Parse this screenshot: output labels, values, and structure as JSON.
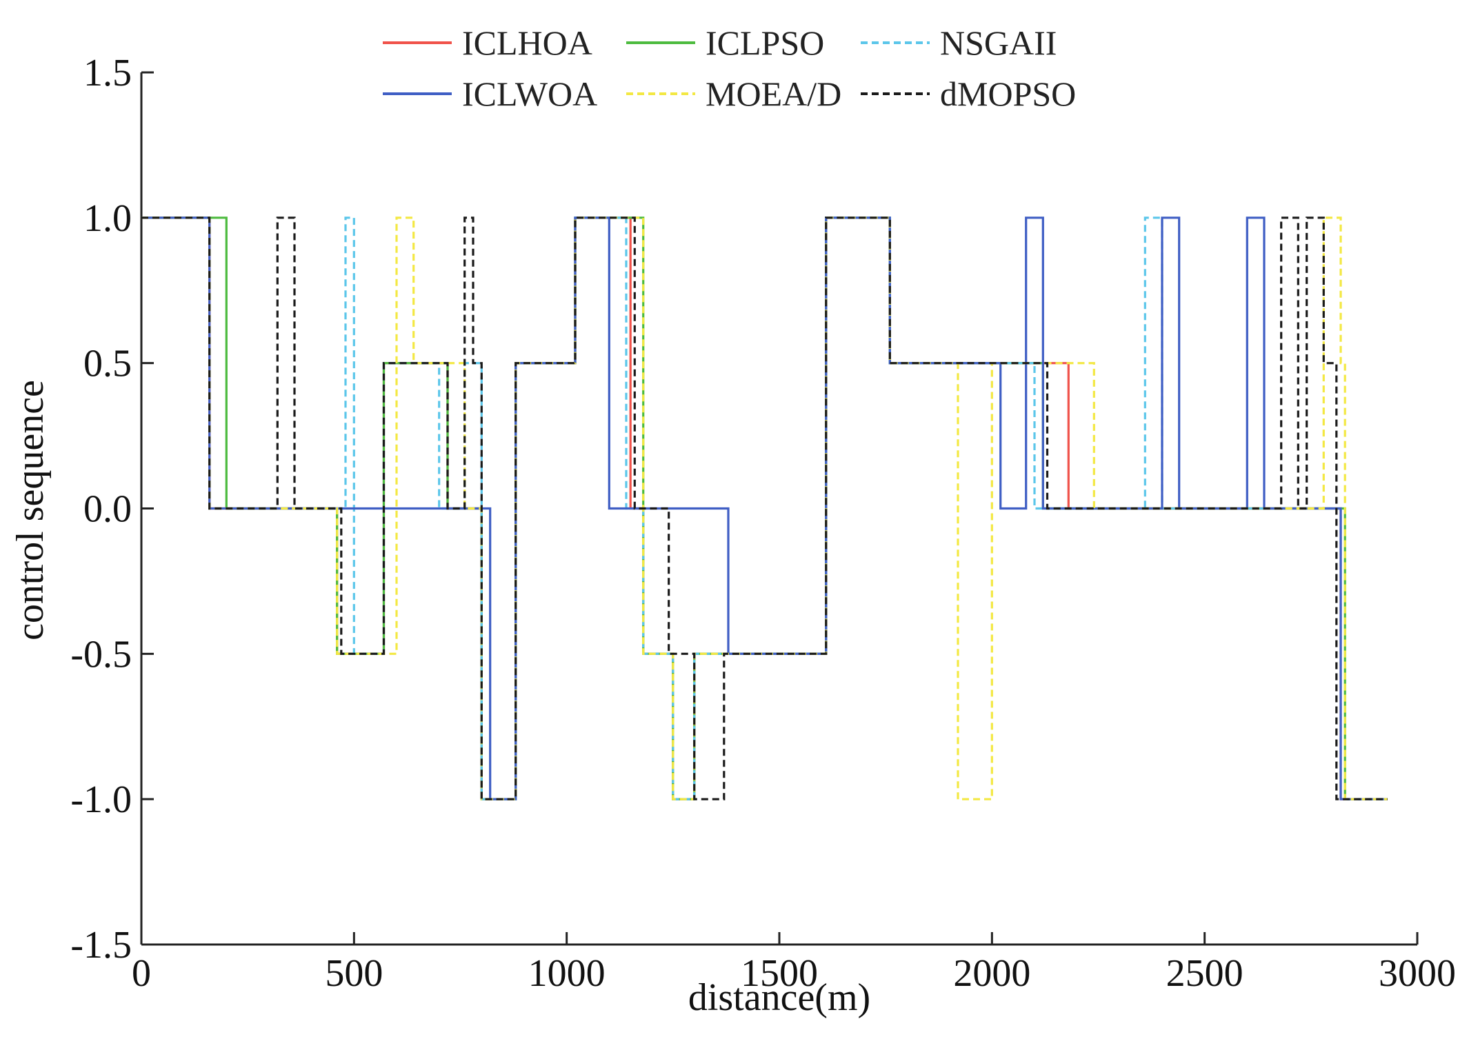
{
  "chart_data": {
    "type": "line",
    "title": "",
    "xlabel": "distance(m)",
    "ylabel": "control sequence",
    "xlim": [
      0,
      3000
    ],
    "ylim": [
      -1.5,
      1.5
    ],
    "x_ticks": [
      0,
      500,
      1000,
      1500,
      2000,
      2500,
      3000
    ],
    "x_tick_labels": [
      "0",
      "500",
      "1000",
      "1500",
      "2000",
      "2500",
      "3000"
    ],
    "y_ticks": [
      1.5,
      1.0,
      0.5,
      0.0,
      -0.5,
      -1.0,
      -1.5
    ],
    "y_tick_labels": [
      "1.5",
      "1.0",
      "0.5",
      "0.0",
      "-0.5",
      "-1.0",
      "-1.5"
    ],
    "grid": false,
    "legend_position": "top-center",
    "series": [
      {
        "name": "ICLHOA",
        "color": "#f0524a",
        "dash": "solid",
        "steps": [
          [
            0,
            1
          ],
          [
            160,
            0
          ],
          [
            460,
            -0.5
          ],
          [
            570,
            0.5
          ],
          [
            720,
            0
          ],
          [
            800,
            -1
          ],
          [
            880,
            0.5
          ],
          [
            1020,
            1
          ],
          [
            1150,
            0
          ],
          [
            1180,
            -0.5
          ],
          [
            1250,
            -1
          ],
          [
            1300,
            -0.5
          ],
          [
            1610,
            1
          ],
          [
            1760,
            0.5
          ],
          [
            2180,
            0
          ],
          [
            2820,
            -1
          ],
          [
            2930,
            -1
          ]
        ]
      },
      {
        "name": "ICLPSO",
        "color": "#4dbb3f",
        "dash": "solid",
        "steps": [
          [
            0,
            1
          ],
          [
            200,
            0
          ],
          [
            460,
            -0.5
          ],
          [
            570,
            0.5
          ],
          [
            720,
            0
          ],
          [
            800,
            -1
          ],
          [
            880,
            0.5
          ],
          [
            1020,
            1
          ],
          [
            1180,
            -0.5
          ],
          [
            1250,
            -1
          ],
          [
            1300,
            -0.5
          ],
          [
            1610,
            1
          ],
          [
            1760,
            0.5
          ],
          [
            2120,
            0
          ],
          [
            2830,
            -1
          ],
          [
            2930,
            -1
          ]
        ]
      },
      {
        "name": "NSGAII",
        "color": "#5bc6ea",
        "dash": "dashed",
        "steps": [
          [
            0,
            1
          ],
          [
            160,
            0
          ],
          [
            480,
            1
          ],
          [
            500,
            -0.5
          ],
          [
            570,
            0.5
          ],
          [
            700,
            0
          ],
          [
            760,
            0.5
          ],
          [
            800,
            -1
          ],
          [
            880,
            0.5
          ],
          [
            1020,
            1
          ],
          [
            1140,
            0
          ],
          [
            1180,
            -0.5
          ],
          [
            1250,
            -1
          ],
          [
            1300,
            -0.5
          ],
          [
            1610,
            1
          ],
          [
            1760,
            0.5
          ],
          [
            2100,
            0
          ],
          [
            2360,
            1
          ],
          [
            2400,
            0
          ],
          [
            2820,
            -1
          ],
          [
            2930,
            -1
          ]
        ]
      },
      {
        "name": "ICLWOA",
        "color": "#3f5ec4",
        "dash": "solid",
        "steps": [
          [
            0,
            1
          ],
          [
            160,
            0
          ],
          [
            820,
            -1
          ],
          [
            880,
            0.5
          ],
          [
            1020,
            1
          ],
          [
            1100,
            0
          ],
          [
            1380,
            -0.5
          ],
          [
            1610,
            1
          ],
          [
            1760,
            0.5
          ],
          [
            2020,
            0
          ],
          [
            2080,
            1
          ],
          [
            2120,
            0
          ],
          [
            2400,
            1
          ],
          [
            2440,
            0
          ],
          [
            2600,
            1
          ],
          [
            2640,
            0
          ],
          [
            2820,
            -1
          ],
          [
            2930,
            -1
          ]
        ]
      },
      {
        "name": "MOEA/D",
        "color": "#f3e843",
        "dash": "dashed",
        "steps": [
          [
            0,
            1
          ],
          [
            160,
            0
          ],
          [
            460,
            -0.5
          ],
          [
            600,
            1
          ],
          [
            640,
            0.5
          ],
          [
            760,
            0
          ],
          [
            800,
            -1
          ],
          [
            880,
            0.5
          ],
          [
            1020,
            1
          ],
          [
            1180,
            -0.5
          ],
          [
            1250,
            -1
          ],
          [
            1300,
            -0.5
          ],
          [
            1610,
            1
          ],
          [
            1760,
            0.5
          ],
          [
            1920,
            -1
          ],
          [
            2000,
            0.5
          ],
          [
            2240,
            0
          ],
          [
            2780,
            1
          ],
          [
            2820,
            0.5
          ],
          [
            2830,
            -1
          ],
          [
            2930,
            -1
          ]
        ]
      },
      {
        "name": "dMOPSO",
        "color": "#1a1a1a",
        "dash": "dashed",
        "steps": [
          [
            0,
            1
          ],
          [
            160,
            0
          ],
          [
            320,
            1
          ],
          [
            360,
            0
          ],
          [
            470,
            -0.5
          ],
          [
            570,
            0.5
          ],
          [
            720,
            0
          ],
          [
            760,
            1
          ],
          [
            780,
            0.5
          ],
          [
            800,
            -1
          ],
          [
            880,
            0.5
          ],
          [
            1020,
            1
          ],
          [
            1160,
            0
          ],
          [
            1240,
            -0.5
          ],
          [
            1300,
            -1
          ],
          [
            1370,
            -0.5
          ],
          [
            1610,
            1
          ],
          [
            1760,
            0.5
          ],
          [
            2130,
            0
          ],
          [
            2680,
            1
          ],
          [
            2720,
            0
          ],
          [
            2740,
            1
          ],
          [
            2780,
            0.5
          ],
          [
            2810,
            -1
          ],
          [
            2930,
            -1
          ]
        ]
      }
    ]
  }
}
